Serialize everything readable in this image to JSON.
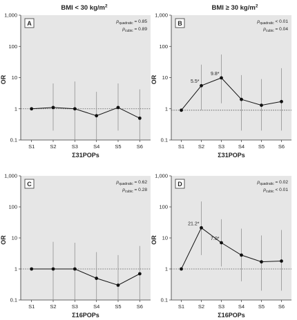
{
  "titles": [
    {
      "text": "BMI < 30 kg/m",
      "sup": "2"
    },
    {
      "text": "BMI ≥ 30 kg/m",
      "sup": "2"
    }
  ],
  "ylabel": "OR",
  "chart_data": [
    {
      "type": "line",
      "panel": "A",
      "xlabel": "Σ31POPs",
      "ylabel": "OR",
      "yscale": "log",
      "ylim": [
        0.1,
        1000
      ],
      "yticks": [
        "0.1",
        "1",
        "10",
        "100",
        "1,000"
      ],
      "categories": [
        "S1",
        "S2",
        "S3",
        "S4",
        "S5",
        "S6"
      ],
      "values": [
        1.0,
        1.1,
        1.0,
        0.6,
        1.1,
        0.5
      ],
      "ci_low": [
        1.0,
        0.2,
        0.1,
        0.1,
        0.2,
        0.1
      ],
      "ci_high": [
        1.0,
        6.5,
        7.5,
        3.5,
        6.5,
        4.2
      ],
      "reference_line": 1,
      "p_values": [
        {
          "label": "p",
          "sub": "quadratic",
          "value": "= 0.85"
        },
        {
          "label": "p",
          "sub": "cubic",
          "value": "= 0.89"
        }
      ],
      "annotations": []
    },
    {
      "type": "line",
      "panel": "B",
      "xlabel": "Σ31POPs",
      "ylabel": "OR",
      "yscale": "log",
      "ylim": [
        0.1,
        1000
      ],
      "yticks": [
        "0.1",
        "1",
        "10",
        "100",
        "1,000"
      ],
      "categories": [
        "S1",
        "S2",
        "S3",
        "S4",
        "S5",
        "S6"
      ],
      "values": [
        0.9,
        5.5,
        9.8,
        2.0,
        1.3,
        1.7
      ],
      "ci_low": [
        0.9,
        0.9,
        1.5,
        0.2,
        0.2,
        0.2
      ],
      "ci_high": [
        0.9,
        26,
        55,
        12,
        9,
        20
      ],
      "reference_line": 0.9,
      "p_values": [
        {
          "label": "p",
          "sub": "quadratic",
          "value": "< 0.01"
        },
        {
          "label": "p",
          "sub": "cubic",
          "value": "= 0.04"
        }
      ],
      "annotations": [
        {
          "category": "S2",
          "text": "5.5*"
        },
        {
          "category": "S3",
          "text": "9.8*"
        }
      ]
    },
    {
      "type": "line",
      "panel": "C",
      "xlabel": "Σ16POPs",
      "ylabel": "OR",
      "yscale": "log",
      "ylim": [
        0.1,
        1000
      ],
      "yticks": [
        "0.1",
        "1",
        "10",
        "100",
        "1,000"
      ],
      "categories": [
        "S1",
        "S2",
        "S3",
        "S4",
        "S5",
        "S6"
      ],
      "values": [
        1.0,
        1.0,
        1.0,
        0.5,
        0.3,
        0.7
      ],
      "ci_low": [
        1.0,
        0.1,
        0.1,
        0.1,
        0.1,
        0.1
      ],
      "ci_high": [
        1.0,
        7.5,
        7.0,
        3.5,
        2.8,
        5.5
      ],
      "reference_line": 1,
      "p_values": [
        {
          "label": "p",
          "sub": "quadratic",
          "value": "= 0.62"
        },
        {
          "label": "p",
          "sub": "cubic",
          "value": "= 0.28"
        }
      ],
      "annotations": []
    },
    {
      "type": "line",
      "panel": "D",
      "xlabel": "Σ16POPs",
      "ylabel": "OR",
      "yscale": "log",
      "ylim": [
        0.1,
        1000
      ],
      "yticks": [
        "0.1",
        "1",
        "10",
        "100",
        "1,000"
      ],
      "categories": [
        "S1",
        "S2",
        "S3",
        "S4",
        "S5",
        "S6"
      ],
      "values": [
        1.0,
        21.2,
        7.0,
        2.8,
        1.7,
        1.8
      ],
      "ci_low": [
        1.0,
        2.8,
        1.2,
        0.4,
        0.2,
        0.2
      ],
      "ci_high": [
        1.0,
        150,
        40,
        20,
        12,
        18
      ],
      "reference_line": 1,
      "p_values": [
        {
          "label": "p",
          "sub": "quadratic",
          "value": "= 0.02"
        },
        {
          "label": "p",
          "sub": "cubic",
          "value": "< 0.01"
        }
      ],
      "annotations": [
        {
          "category": "S2",
          "text": "21.2*"
        },
        {
          "category": "S3",
          "text": "7.0*"
        }
      ]
    }
  ]
}
